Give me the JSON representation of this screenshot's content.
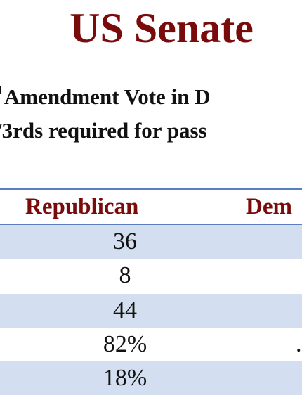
{
  "title": "US Senate",
  "subtitle_line1": {
    "prefix_superscript": "d",
    "text": "Amendment Vote in D"
  },
  "subtitle_line2": "3rds required for pass",
  "subtitle_line2_lead": "/",
  "table": {
    "columns": [
      "Republican",
      "Dem"
    ],
    "rows": [
      {
        "republican": "36",
        "democrat": "",
        "shaded": true
      },
      {
        "republican": "8",
        "democrat": "",
        "shaded": false
      },
      {
        "republican": "44",
        "democrat": "",
        "shaded": true
      },
      {
        "republican": "82%",
        "democrat": ".",
        "shaded": false
      },
      {
        "republican": "18%",
        "democrat": "",
        "shaded": true
      }
    ]
  },
  "colors": {
    "title": "#7a0b0b",
    "header": "#7a0b0b",
    "rule": "#5a7fc1",
    "shaded_row": "#d3dff0"
  }
}
